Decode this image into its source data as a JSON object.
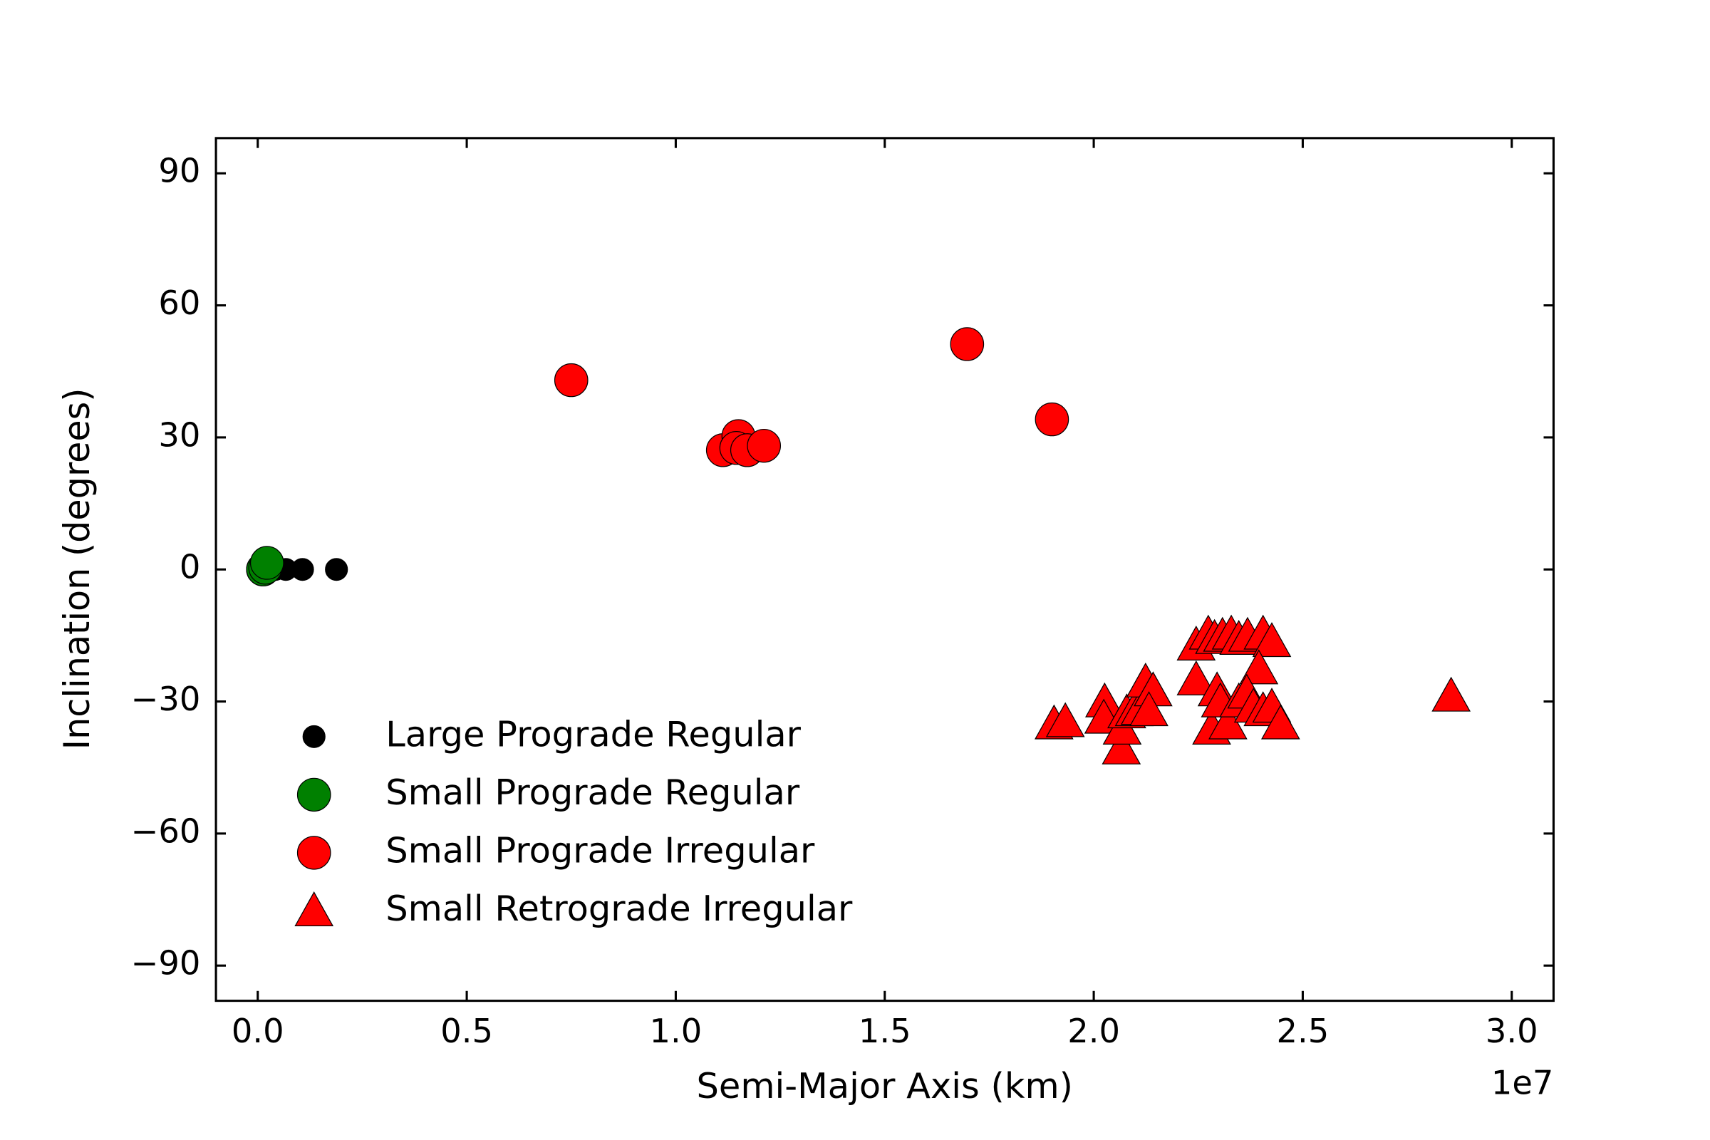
{
  "chart_data": {
    "type": "scatter",
    "x_label": "Semi-Major Axis (km)",
    "y_label": "Inclination (degrees)",
    "x_offset_label": "1e7",
    "xlim": [
      -1000000,
      31000000
    ],
    "ylim": [
      -98,
      98
    ],
    "xticks": [
      {
        "value": 0,
        "label": "0.0"
      },
      {
        "value": 5000000,
        "label": "0.5"
      },
      {
        "value": 10000000,
        "label": "1.0"
      },
      {
        "value": 15000000,
        "label": "1.5"
      },
      {
        "value": 20000000,
        "label": "2.0"
      },
      {
        "value": 25000000,
        "label": "2.5"
      },
      {
        "value": 30000000,
        "label": "3.0"
      }
    ],
    "yticks": [
      {
        "value": -90,
        "label": "−90"
      },
      {
        "value": -60,
        "label": "−60"
      },
      {
        "value": -30,
        "label": "−30"
      },
      0,
      30,
      60,
      90
    ],
    "legend": "lower left",
    "series": [
      {
        "name": "Large Prograde Regular",
        "color": "#000000",
        "marker": ".",
        "x": [
          421700,
          671100,
          1070400,
          1882700
        ],
        "values": [
          0,
          0,
          0,
          0
        ]
      },
      {
        "name": "Small Prograde Regular",
        "color": "#008000",
        "marker": "o",
        "x": [
          128000,
          129000,
          181400,
          221900
        ],
        "values": [
          0,
          0,
          0.4,
          1.5
        ]
      },
      {
        "name": "Small Prograde Irregular",
        "color": "#ff0000",
        "marker": "o",
        "x": [
          7500000,
          11130000,
          11500000,
          11450000,
          11710000,
          12110000,
          16970000,
          19000000
        ],
        "values": [
          43.0,
          27.1,
          30.3,
          27.6,
          27.1,
          28.1,
          51.2,
          34.1
        ]
      },
      {
        "name": "Small Retrograde Irregular",
        "color": "#ff0000",
        "marker": "^",
        "x": [
          19050000,
          19320000,
          20260000,
          20240000,
          20660000,
          20680000,
          20790000,
          20970000,
          21110000,
          21240000,
          21420000,
          21320000,
          22450000,
          22450000,
          22740000,
          22890000,
          23080000,
          23290000,
          23470000,
          23680000,
          24050000,
          24260000,
          23950000,
          22950000,
          22820000,
          23030000,
          23210000,
          23470000,
          23660000,
          23820000,
          24050000,
          24260000,
          24470000,
          28550000
        ],
        "values": [
          -35.1,
          -34.6,
          -30.1,
          -33.8,
          -40.8,
          -36.3,
          -32.6,
          -32.1,
          -31.8,
          -25.6,
          -27.6,
          -32.1,
          -17.2,
          -25.1,
          -14.7,
          -15.7,
          -15.2,
          -14.7,
          -15.9,
          -15.2,
          -14.7,
          -16.4,
          -22.6,
          -27.6,
          -36.3,
          -30.1,
          -35.1,
          -30.1,
          -28.1,
          -31.3,
          -32.1,
          -31.3,
          -35.1,
          -28.8
        ]
      }
    ]
  }
}
